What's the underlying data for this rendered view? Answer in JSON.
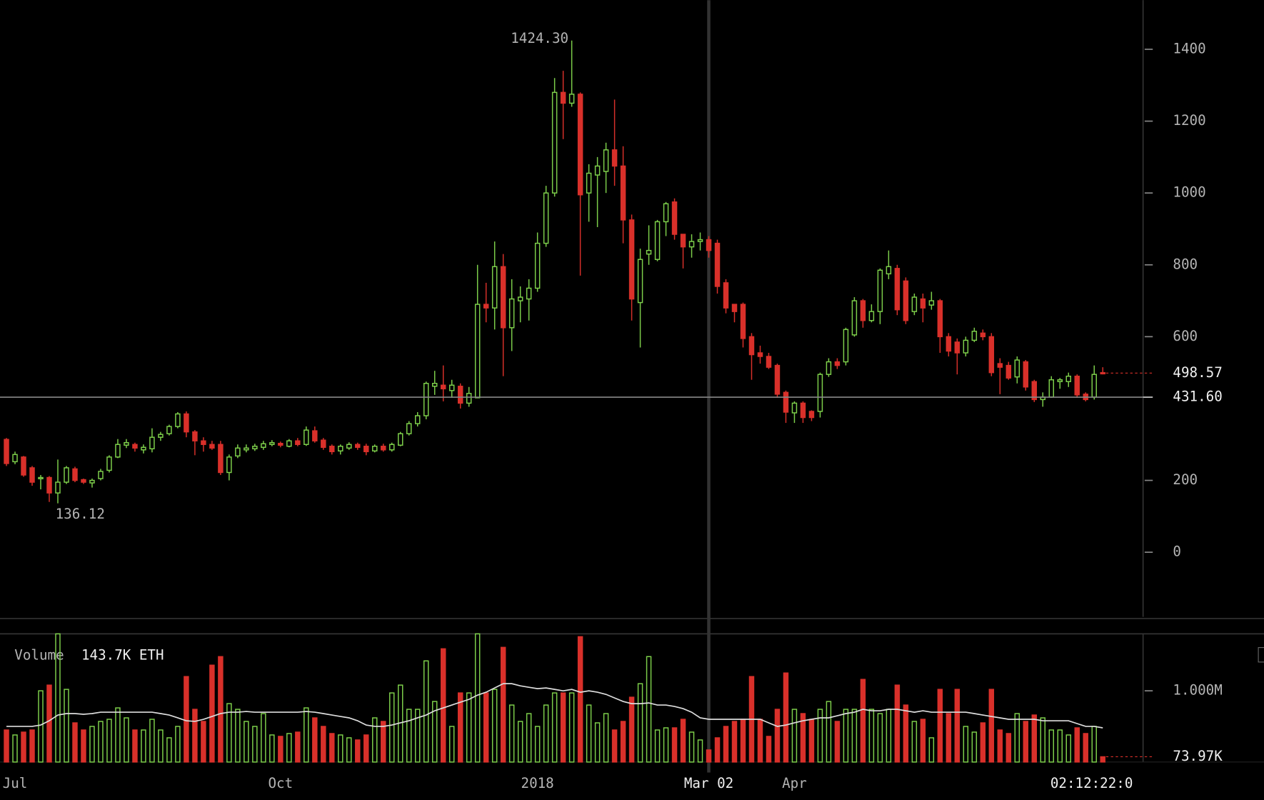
{
  "chart_data": {
    "type": "candlestick",
    "categories": [
      null,
      "Jul",
      null,
      null,
      null,
      null,
      null,
      null,
      null,
      null,
      null,
      null,
      null,
      null,
      null,
      null,
      null,
      null,
      null,
      null,
      null,
      null,
      null,
      null,
      null,
      null,
      null,
      null,
      null,
      null,
      null,
      null,
      "Oct",
      null,
      null,
      null,
      null,
      null,
      null,
      null,
      null,
      null,
      null,
      null,
      null,
      null,
      null,
      null,
      null,
      null,
      null,
      null,
      null,
      null,
      null,
      null,
      null,
      null,
      null,
      null,
      null,
      null,
      "2018",
      null,
      null,
      null,
      null,
      null,
      null,
      null,
      null,
      null,
      null,
      null,
      null,
      null,
      null,
      null,
      null,
      null,
      null,
      null,
      "Mar 02",
      null,
      null,
      null,
      null,
      null,
      null,
      null,
      null,
      null,
      "Apr",
      null,
      null,
      null,
      null,
      null,
      null,
      null,
      null,
      null,
      null,
      null,
      null,
      null,
      null,
      null,
      null,
      null,
      null,
      null,
      null,
      null,
      null,
      null,
      null,
      null,
      null,
      null,
      null,
      null,
      null,
      null,
      null,
      null,
      null,
      null,
      null
    ],
    "open": [
      314,
      252,
      265,
      235,
      205,
      208,
      165,
      195,
      232,
      202,
      193,
      205,
      228,
      265,
      298,
      300,
      285,
      288,
      320,
      330,
      350,
      385,
      335,
      310,
      300,
      300,
      222,
      268,
      285,
      288,
      292,
      300,
      303,
      295,
      310,
      300,
      338,
      312,
      295,
      282,
      290,
      300,
      295,
      282,
      295,
      285,
      298,
      330,
      358,
      380,
      462,
      465,
      450,
      462,
      415,
      430,
      690,
      680,
      795,
      625,
      700,
      705,
      735,
      860,
      1000,
      1280,
      1250,
      1275,
      1000,
      1050,
      1060,
      1120,
      1075,
      925,
      695,
      830,
      815,
      920,
      975,
      885,
      850,
      865,
      870,
      860,
      750,
      690,
      690,
      600,
      555,
      545,
      520,
      445,
      388,
      415,
      392,
      392,
      495,
      530,
      530,
      605,
      700,
      645,
      670,
      775,
      790,
      755,
      670,
      705,
      688,
      700,
      600,
      585,
      555,
      590,
      610,
      600,
      525,
      520,
      488,
      530,
      475,
      425,
      432,
      475,
      475,
      490,
      440,
      432,
      500
    ],
    "high": [
      318,
      280,
      268,
      240,
      215,
      212,
      258,
      240,
      238,
      205,
      205,
      232,
      270,
      315,
      315,
      305,
      300,
      345,
      335,
      355,
      390,
      392,
      340,
      320,
      310,
      310,
      272,
      300,
      300,
      302,
      310,
      312,
      308,
      315,
      318,
      350,
      350,
      318,
      300,
      300,
      306,
      305,
      302,
      300,
      302,
      305,
      335,
      365,
      390,
      475,
      505,
      520,
      480,
      470,
      460,
      800,
      750,
      865,
      830,
      760,
      740,
      760,
      890,
      1020,
      1320,
      1340,
      1424.3,
      1280,
      1080,
      1100,
      1140,
      1260,
      1130,
      940,
      845,
      910,
      925,
      975,
      985,
      885,
      885,
      890,
      880,
      870,
      760,
      690,
      695,
      610,
      575,
      555,
      525,
      450,
      420,
      420,
      395,
      500,
      540,
      540,
      625,
      710,
      705,
      690,
      790,
      840,
      800,
      765,
      720,
      720,
      725,
      705,
      610,
      595,
      600,
      625,
      620,
      610,
      540,
      530,
      545,
      535,
      480,
      445,
      490,
      485,
      500,
      495,
      445,
      520,
      515
    ],
    "low": [
      240,
      245,
      210,
      185,
      175,
      140,
      136.12,
      190,
      195,
      190,
      180,
      200,
      222,
      262,
      290,
      280,
      275,
      278,
      310,
      325,
      345,
      320,
      270,
      280,
      285,
      215,
      200,
      262,
      278,
      282,
      285,
      295,
      292,
      292,
      295,
      296,
      305,
      285,
      272,
      272,
      285,
      285,
      270,
      278,
      280,
      280,
      295,
      325,
      350,
      370,
      438,
      420,
      430,
      400,
      405,
      430,
      640,
      620,
      490,
      560,
      640,
      645,
      725,
      850,
      990,
      1150,
      1240,
      770,
      920,
      905,
      1000,
      1020,
      860,
      645,
      570,
      800,
      810,
      880,
      870,
      790,
      820,
      840,
      820,
      720,
      665,
      640,
      570,
      480,
      525,
      510,
      430,
      360,
      360,
      360,
      365,
      375,
      488,
      510,
      520,
      600,
      625,
      640,
      635,
      760,
      660,
      635,
      660,
      640,
      675,
      555,
      545,
      495,
      545,
      585,
      590,
      490,
      440,
      480,
      470,
      450,
      418,
      405,
      430,
      455,
      460,
      430,
      420,
      425,
      495
    ],
    "close": [
      247,
      272,
      215,
      195,
      208,
      165,
      195,
      235,
      200,
      195,
      200,
      225,
      265,
      300,
      305,
      290,
      292,
      320,
      328,
      350,
      385,
      335,
      310,
      300,
      290,
      222,
      265,
      290,
      290,
      295,
      302,
      305,
      298,
      310,
      300,
      340,
      310,
      292,
      280,
      295,
      300,
      292,
      280,
      295,
      285,
      300,
      330,
      358,
      380,
      470,
      470,
      455,
      465,
      415,
      442,
      690,
      680,
      795,
      625,
      705,
      710,
      735,
      860,
      1000,
      1280,
      1250,
      1275,
      995,
      1055,
      1075,
      1120,
      1075,
      925,
      705,
      815,
      840,
      920,
      970,
      885,
      850,
      865,
      870,
      840,
      740,
      680,
      670,
      595,
      550,
      545,
      515,
      440,
      390,
      415,
      375,
      375,
      495,
      530,
      520,
      620,
      700,
      645,
      670,
      785,
      795,
      675,
      645,
      710,
      680,
      700,
      600,
      560,
      555,
      590,
      615,
      600,
      500,
      515,
      485,
      535,
      460,
      425,
      432,
      480,
      480,
      490,
      438,
      425,
      495,
      498.57
    ],
    "colors": {
      "up": "#7ed04b",
      "down": "#d9302a"
    },
    "ylim": [
      -180,
      1537
    ],
    "yticks": [
      0,
      200,
      600,
      800,
      1000,
      1200,
      1400
    ],
    "last_price": 498.57,
    "crosshair": {
      "value": 431.6,
      "label": "431.60"
    },
    "high_label": {
      "value": 1424.3,
      "label": "1424.30"
    },
    "low_label": 136.12,
    "volume": {
      "label": "Volume",
      "current": "143.7K ETH",
      "values": [
        450000,
        380000,
        420000,
        450000,
        1000000,
        1080000,
        1800000,
        1020000,
        550000,
        450000,
        500000,
        570000,
        600000,
        760000,
        620000,
        450000,
        450000,
        600000,
        450000,
        340000,
        500000,
        1200000,
        740000,
        570000,
        1360000,
        1480000,
        820000,
        740000,
        570000,
        500000,
        680000,
        380000,
        360000,
        400000,
        420000,
        760000,
        620000,
        500000,
        400000,
        380000,
        340000,
        310000,
        380000,
        620000,
        570000,
        970000,
        1080000,
        740000,
        740000,
        1420000,
        850000,
        1590000,
        500000,
        970000,
        970000,
        1800000,
        970000,
        1020000,
        1610000,
        800000,
        570000,
        680000,
        500000,
        800000,
        970000,
        970000,
        970000,
        1760000,
        800000,
        550000,
        680000,
        450000,
        570000,
        910000,
        1100000,
        1480000,
        450000,
        480000,
        480000,
        600000,
        420000,
        310000,
        170000,
        340000,
        500000,
        570000,
        600000,
        1200000,
        600000,
        360000,
        740000,
        1250000,
        740000,
        680000,
        600000,
        740000,
        850000,
        570000,
        740000,
        740000,
        1160000,
        740000,
        680000,
        740000,
        1080000,
        800000,
        570000,
        600000,
        340000,
        1020000,
        680000,
        1020000,
        500000,
        420000,
        550000,
        1020000,
        450000,
        400000,
        680000,
        570000,
        660000,
        620000,
        450000,
        450000,
        380000,
        480000,
        400000,
        500000,
        73970
      ],
      "ma": [
        500000,
        500000,
        500000,
        500000,
        520000,
        580000,
        660000,
        680000,
        680000,
        670000,
        680000,
        700000,
        700000,
        700000,
        700000,
        700000,
        700000,
        700000,
        680000,
        660000,
        620000,
        580000,
        570000,
        600000,
        640000,
        680000,
        700000,
        700000,
        710000,
        700000,
        700000,
        700000,
        700000,
        700000,
        700000,
        710000,
        700000,
        680000,
        660000,
        640000,
        620000,
        580000,
        520000,
        500000,
        500000,
        520000,
        550000,
        580000,
        620000,
        660000,
        720000,
        760000,
        800000,
        840000,
        880000,
        940000,
        980000,
        1040000,
        1100000,
        1100000,
        1070000,
        1050000,
        1030000,
        1040000,
        1020000,
        1000000,
        1020000,
        980000,
        1000000,
        980000,
        950000,
        900000,
        850000,
        820000,
        820000,
        830000,
        800000,
        800000,
        780000,
        750000,
        700000,
        620000,
        600000,
        600000,
        600000,
        600000,
        600000,
        600000,
        600000,
        550000,
        500000,
        520000,
        550000,
        580000,
        600000,
        620000,
        620000,
        650000,
        680000,
        700000,
        740000,
        720000,
        720000,
        740000,
        740000,
        720000,
        700000,
        720000,
        700000,
        700000,
        700000,
        700000,
        700000,
        680000,
        660000,
        640000,
        620000,
        600000,
        600000,
        600000,
        600000,
        580000,
        580000,
        580000,
        580000,
        540000,
        500000,
        500000,
        480000
      ],
      "ylim": [
        0,
        1800000
      ],
      "yticks": [
        {
          "value": 1000000,
          "label": "1.000M"
        }
      ],
      "last": {
        "value": 73970,
        "label": "73.97K"
      }
    },
    "countdown": "02:12:22:0"
  }
}
